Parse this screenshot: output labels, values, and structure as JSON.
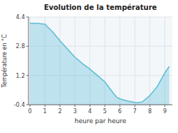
{
  "chart_data": {
    "type": "area",
    "title": "Evolution de la température",
    "x_label": "heure par heure",
    "y_label": "Température en °C",
    "color": "#5bbcd6",
    "grid": true,
    "x": [
      0,
      0.5,
      1.0,
      1.5,
      2.0,
      2.5,
      3.0,
      3.5,
      4.0,
      4.5,
      5.0,
      5.5,
      5.8,
      6.0,
      6.5,
      7.0,
      7.2,
      7.5,
      8.0,
      8.5,
      9.0,
      9.3
    ],
    "values": [
      4.05,
      4.05,
      4.0,
      3.6,
      3.1,
      2.65,
      2.2,
      1.85,
      1.55,
      1.2,
      0.85,
      0.3,
      0.0,
      -0.08,
      -0.2,
      -0.27,
      -0.28,
      -0.25,
      0.1,
      0.6,
      1.35,
      1.7
    ],
    "xlim": [
      -0.1,
      9.5
    ],
    "ylim": [
      -0.4,
      4.4
    ],
    "xticks": [
      0,
      1,
      2,
      3,
      4,
      5,
      6,
      7,
      8,
      9
    ],
    "yticks": [
      -0.4,
      1.2,
      2.8,
      4.4
    ]
  }
}
